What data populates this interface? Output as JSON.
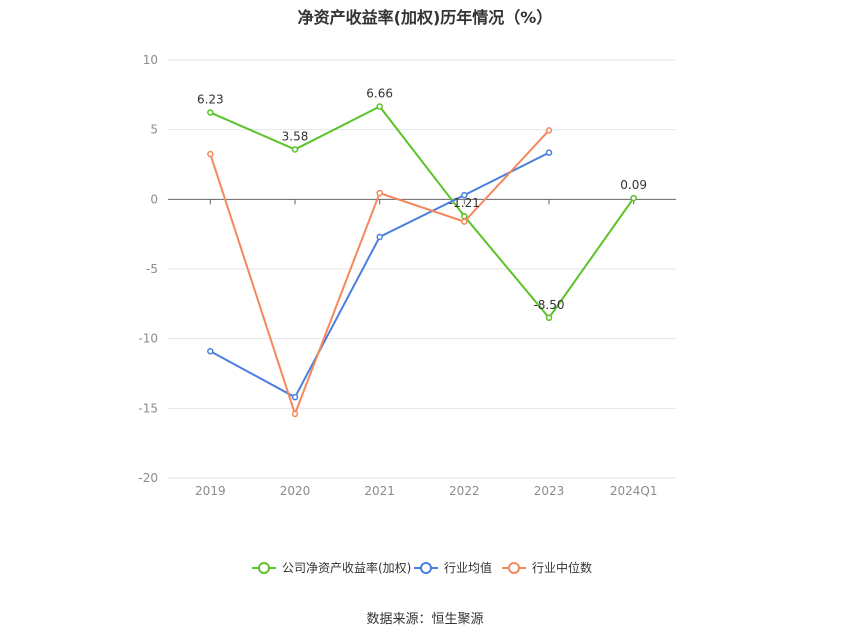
{
  "title": "净资产收益率(加权)历年情况（%）",
  "source": "数据来源：恒生聚源",
  "colors": {
    "company": "#5bc227",
    "industry_avg": "#4a7fe0",
    "industry_median": "#f5875d",
    "grid": "#e3e6ee",
    "axis": "#666666"
  },
  "chart_data": {
    "type": "line",
    "title": "净资产收益率(加权)历年情况（%）",
    "xlabel": "",
    "ylabel": "",
    "ylim": [
      -20,
      10
    ],
    "yticks": [
      10,
      5,
      0,
      -5,
      -10,
      -15,
      -20
    ],
    "categories": [
      "2019",
      "2020",
      "2021",
      "2022",
      "2023",
      "2024Q1"
    ],
    "grid": true,
    "legend_position": "bottom-center",
    "series": [
      {
        "name": "公司净资产收益率(加权)",
        "color": "#5bc227",
        "values": [
          6.23,
          3.58,
          6.66,
          -1.21,
          -8.5,
          0.09
        ],
        "labels": [
          "6.23",
          "3.58",
          "6.66",
          "-1.21",
          "-8.50",
          "0.09"
        ]
      },
      {
        "name": "行业均值",
        "color": "#4a7fe0",
        "values": [
          -10.9,
          -14.2,
          -2.7,
          0.3,
          3.35,
          null
        ]
      },
      {
        "name": "行业中位数",
        "color": "#f5875d",
        "values": [
          3.25,
          -15.4,
          0.45,
          -1.6,
          4.95,
          null
        ]
      }
    ]
  }
}
